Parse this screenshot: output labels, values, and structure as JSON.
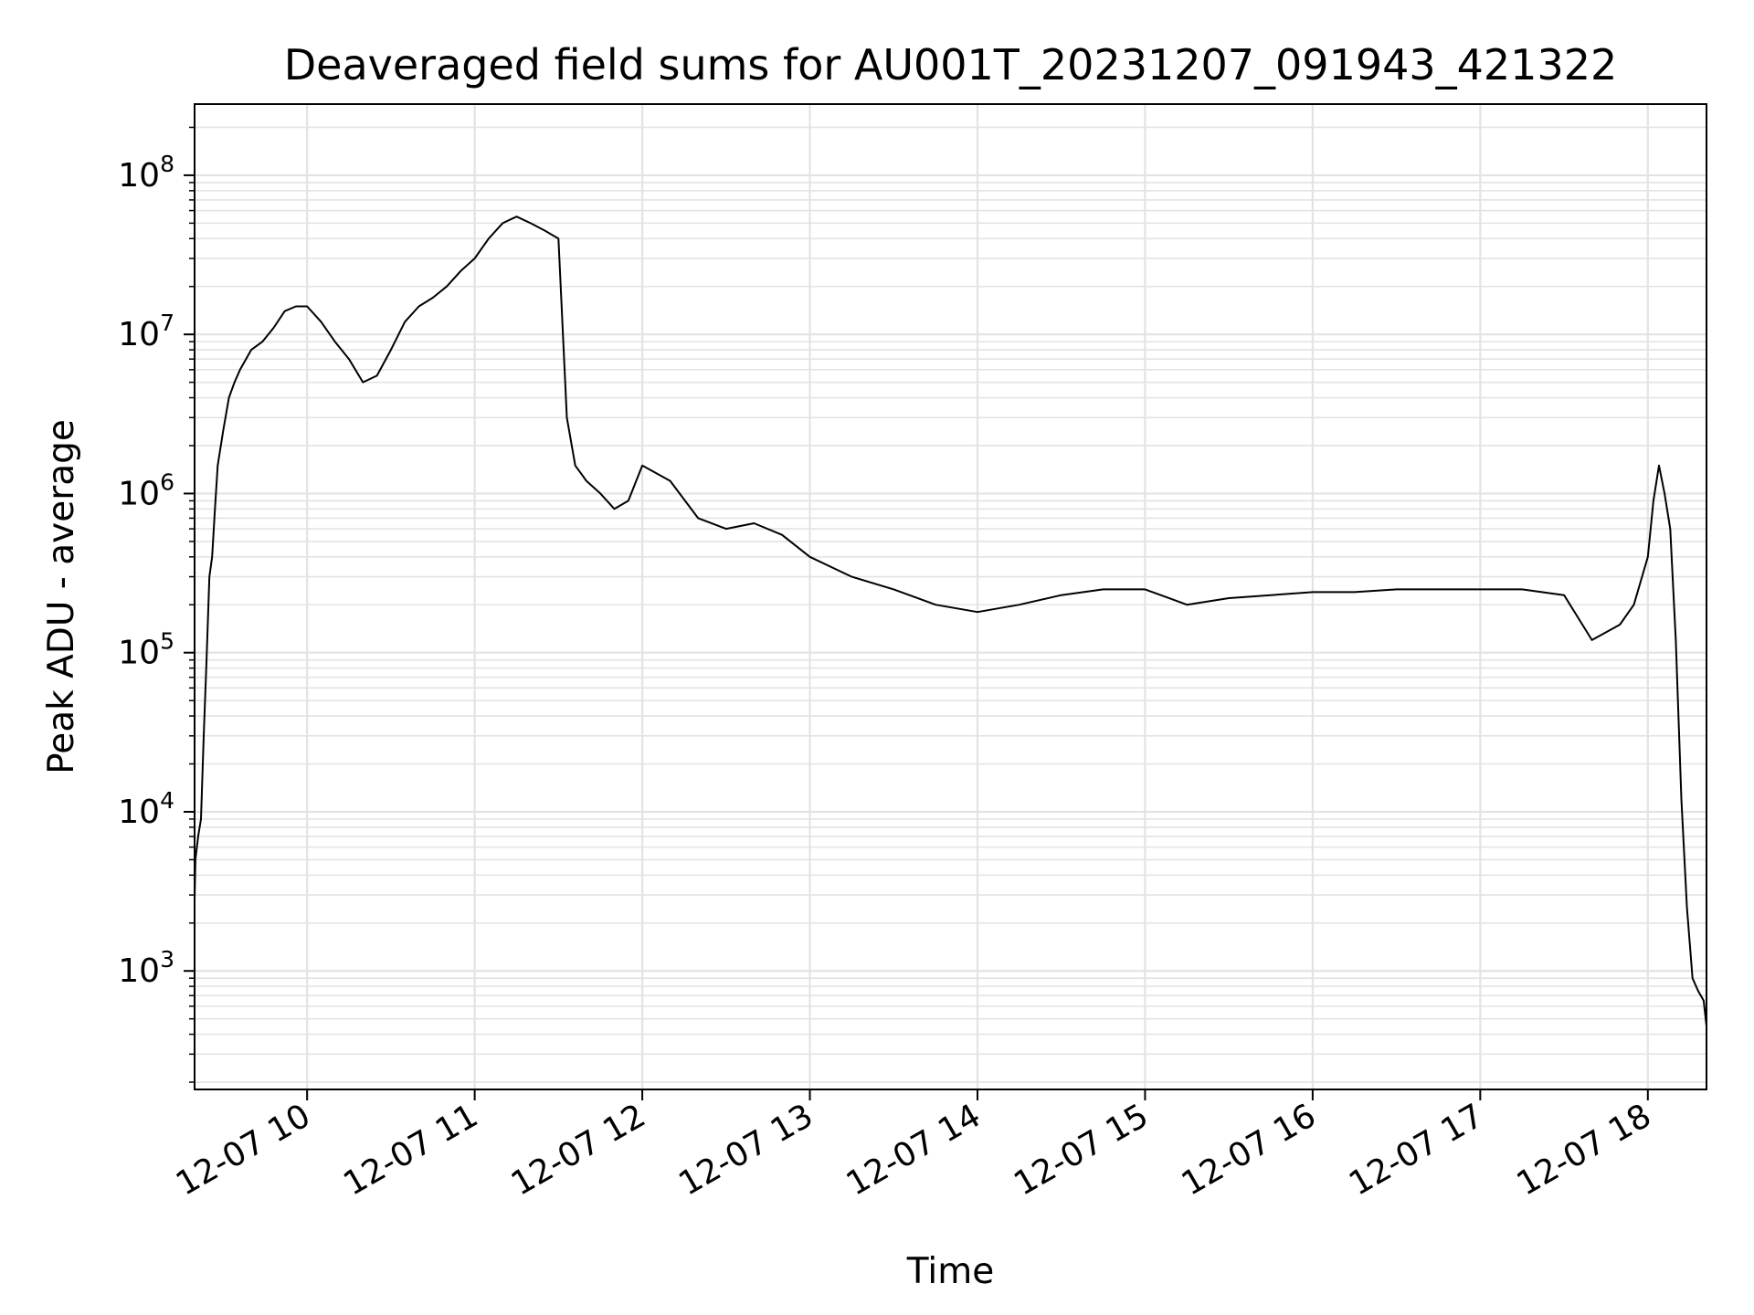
{
  "chart_data": {
    "type": "line",
    "title": "Deaveraged field sums for AU001T_20231207_091943_421322",
    "xlabel": "Time",
    "ylabel": "Peak ADU - average",
    "yscale": "log",
    "grid": true,
    "grid_minor": true,
    "line_color": "#000000",
    "grid_color": "#e3e3e3",
    "xlim": [
      "2023-12-07 09:19:43",
      "2023-12-07 18:21:00"
    ],
    "ylim": [
      180,
      280000000
    ],
    "x_ticks": [
      {
        "t": "2023-12-07 10:00",
        "label": "12-07 10"
      },
      {
        "t": "2023-12-07 11:00",
        "label": "12-07 11"
      },
      {
        "t": "2023-12-07 12:00",
        "label": "12-07 12"
      },
      {
        "t": "2023-12-07 13:00",
        "label": "12-07 13"
      },
      {
        "t": "2023-12-07 14:00",
        "label": "12-07 14"
      },
      {
        "t": "2023-12-07 15:00",
        "label": "12-07 15"
      },
      {
        "t": "2023-12-07 16:00",
        "label": "12-07 16"
      },
      {
        "t": "2023-12-07 17:00",
        "label": "12-07 17"
      },
      {
        "t": "2023-12-07 18:00",
        "label": "12-07 18"
      }
    ],
    "y_ticks": [
      {
        "value": 1000,
        "base": "10",
        "exp": "3"
      },
      {
        "value": 10000,
        "base": "10",
        "exp": "4"
      },
      {
        "value": 100000,
        "base": "10",
        "exp": "5"
      },
      {
        "value": 1000000,
        "base": "10",
        "exp": "6"
      },
      {
        "value": 10000000,
        "base": "10",
        "exp": "7"
      },
      {
        "value": 100000000,
        "base": "10",
        "exp": "8"
      }
    ],
    "series": [
      {
        "x": [
          "2023-12-07 09:19:43",
          "2023-12-07 09:20",
          "2023-12-07 09:21",
          "2023-12-07 09:22",
          "2023-12-07 09:23",
          "2023-12-07 09:24",
          "2023-12-07 09:25",
          "2023-12-07 09:26",
          "2023-12-07 09:27",
          "2023-12-07 09:28",
          "2023-12-07 09:30",
          "2023-12-07 09:32",
          "2023-12-07 09:34",
          "2023-12-07 09:36",
          "2023-12-07 09:40",
          "2023-12-07 09:44",
          "2023-12-07 09:48",
          "2023-12-07 09:52",
          "2023-12-07 09:56",
          "2023-12-07 10:00",
          "2023-12-07 10:05",
          "2023-12-07 10:10",
          "2023-12-07 10:15",
          "2023-12-07 10:20",
          "2023-12-07 10:25",
          "2023-12-07 10:30",
          "2023-12-07 10:35",
          "2023-12-07 10:40",
          "2023-12-07 10:45",
          "2023-12-07 10:50",
          "2023-12-07 10:55",
          "2023-12-07 11:00",
          "2023-12-07 11:05",
          "2023-12-07 11:10",
          "2023-12-07 11:15",
          "2023-12-07 11:20",
          "2023-12-07 11:25",
          "2023-12-07 11:30",
          "2023-12-07 11:33",
          "2023-12-07 11:36",
          "2023-12-07 11:40",
          "2023-12-07 11:45",
          "2023-12-07 11:50",
          "2023-12-07 11:55",
          "2023-12-07 12:00",
          "2023-12-07 12:10",
          "2023-12-07 12:20",
          "2023-12-07 12:30",
          "2023-12-07 12:40",
          "2023-12-07 12:50",
          "2023-12-07 13:00",
          "2023-12-07 13:15",
          "2023-12-07 13:30",
          "2023-12-07 13:45",
          "2023-12-07 14:00",
          "2023-12-07 14:15",
          "2023-12-07 14:30",
          "2023-12-07 14:45",
          "2023-12-07 15:00",
          "2023-12-07 15:15",
          "2023-12-07 15:30",
          "2023-12-07 15:45",
          "2023-12-07 16:00",
          "2023-12-07 16:15",
          "2023-12-07 16:30",
          "2023-12-07 16:45",
          "2023-12-07 17:00",
          "2023-12-07 17:15",
          "2023-12-07 17:30",
          "2023-12-07 17:40",
          "2023-12-07 17:50",
          "2023-12-07 17:55",
          "2023-12-07 18:00",
          "2023-12-07 18:02",
          "2023-12-07 18:04",
          "2023-12-07 18:06",
          "2023-12-07 18:08",
          "2023-12-07 18:10",
          "2023-12-07 18:12",
          "2023-12-07 18:14",
          "2023-12-07 18:16",
          "2023-12-07 18:18",
          "2023-12-07 18:20",
          "2023-12-07 18:21"
        ],
        "y": [
          2800,
          5000,
          7000,
          9000,
          30000,
          90000,
          300000,
          400000,
          800000,
          1500000,
          2500000,
          4000000,
          5000000,
          6000000,
          8000000,
          9000000,
          11000000,
          14000000,
          15000000,
          15000000,
          12000000,
          9000000,
          7000000,
          5000000,
          5500000,
          8000000,
          12000000,
          15000000,
          17000000,
          20000000,
          25000000,
          30000000,
          40000000,
          50000000,
          55000000,
          50000000,
          45000000,
          40000000,
          3000000,
          1500000,
          1200000,
          1000000,
          800000,
          900000,
          1500000,
          1200000,
          700000,
          600000,
          650000,
          550000,
          400000,
          300000,
          250000,
          200000,
          180000,
          200000,
          230000,
          250000,
          250000,
          200000,
          220000,
          230000,
          240000,
          240000,
          250000,
          250000,
          250000,
          250000,
          230000,
          120000,
          150000,
          200000,
          400000,
          900000,
          1500000,
          1000000,
          600000,
          120000,
          12000,
          2500,
          900,
          750,
          650,
          450
        ]
      }
    ]
  }
}
